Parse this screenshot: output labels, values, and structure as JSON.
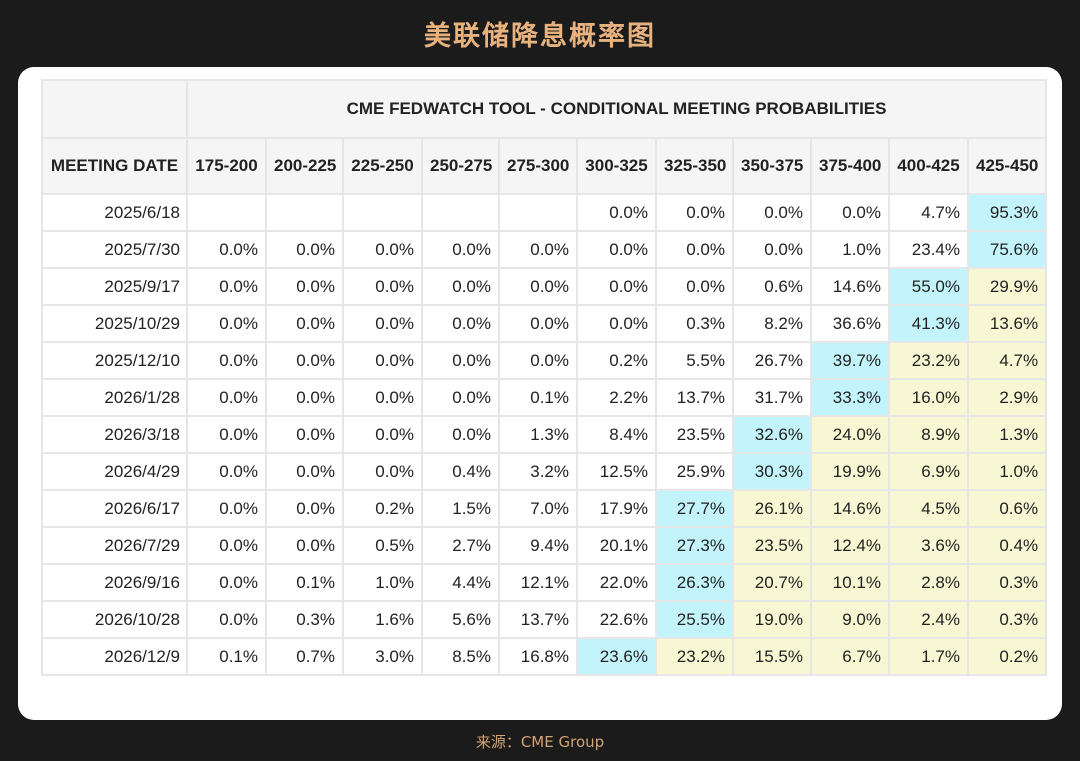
{
  "page": {
    "title": "美联储降息概率图",
    "source": "来源：CME Group"
  },
  "colors": {
    "background": "#1b1b1b",
    "title_text": "#e8b27e",
    "source_text": "#d2a374",
    "card": "#ffffff",
    "header_bg": "#f5f5f5",
    "highlight_max": "#c4f4fb",
    "highlight_below_max": "#f8f7d4",
    "grid": "#e6e6e6"
  },
  "table": {
    "title": "CME FEDWATCH TOOL - CONDITIONAL MEETING PROBABILITIES",
    "date_header": "MEETING DATE",
    "columns": [
      "175-200",
      "200-225",
      "225-250",
      "250-275",
      "275-300",
      "300-325",
      "325-350",
      "350-375",
      "375-400",
      "400-425",
      "425-450"
    ],
    "rows": [
      {
        "date": "2025/6/18",
        "values": [
          "",
          "",
          "",
          "",
          "",
          "0.0%",
          "0.0%",
          "0.0%",
          "0.0%",
          "4.7%",
          "95.3%"
        ],
        "hl": [
          "",
          "",
          "",
          "",
          "",
          "",
          "",
          "",
          "",
          "",
          "b"
        ]
      },
      {
        "date": "2025/7/30",
        "values": [
          "0.0%",
          "0.0%",
          "0.0%",
          "0.0%",
          "0.0%",
          "0.0%",
          "0.0%",
          "0.0%",
          "1.0%",
          "23.4%",
          "75.6%"
        ],
        "hl": [
          "",
          "",
          "",
          "",
          "",
          "",
          "",
          "",
          "",
          "",
          "b"
        ]
      },
      {
        "date": "2025/9/17",
        "values": [
          "0.0%",
          "0.0%",
          "0.0%",
          "0.0%",
          "0.0%",
          "0.0%",
          "0.0%",
          "0.6%",
          "14.6%",
          "55.0%",
          "29.9%"
        ],
        "hl": [
          "",
          "",
          "",
          "",
          "",
          "",
          "",
          "",
          "",
          "b",
          "y"
        ]
      },
      {
        "date": "2025/10/29",
        "values": [
          "0.0%",
          "0.0%",
          "0.0%",
          "0.0%",
          "0.0%",
          "0.0%",
          "0.3%",
          "8.2%",
          "36.6%",
          "41.3%",
          "13.6%"
        ],
        "hl": [
          "",
          "",
          "",
          "",
          "",
          "",
          "",
          "",
          "",
          "b",
          "y"
        ]
      },
      {
        "date": "2025/12/10",
        "values": [
          "0.0%",
          "0.0%",
          "0.0%",
          "0.0%",
          "0.0%",
          "0.2%",
          "5.5%",
          "26.7%",
          "39.7%",
          "23.2%",
          "4.7%"
        ],
        "hl": [
          "",
          "",
          "",
          "",
          "",
          "",
          "",
          "",
          "b",
          "y",
          "y"
        ]
      },
      {
        "date": "2026/1/28",
        "values": [
          "0.0%",
          "0.0%",
          "0.0%",
          "0.0%",
          "0.1%",
          "2.2%",
          "13.7%",
          "31.7%",
          "33.3%",
          "16.0%",
          "2.9%"
        ],
        "hl": [
          "",
          "",
          "",
          "",
          "",
          "",
          "",
          "",
          "b",
          "y",
          "y"
        ]
      },
      {
        "date": "2026/3/18",
        "values": [
          "0.0%",
          "0.0%",
          "0.0%",
          "0.0%",
          "1.3%",
          "8.4%",
          "23.5%",
          "32.6%",
          "24.0%",
          "8.9%",
          "1.3%"
        ],
        "hl": [
          "",
          "",
          "",
          "",
          "",
          "",
          "",
          "b",
          "y",
          "y",
          "y"
        ]
      },
      {
        "date": "2026/4/29",
        "values": [
          "0.0%",
          "0.0%",
          "0.0%",
          "0.4%",
          "3.2%",
          "12.5%",
          "25.9%",
          "30.3%",
          "19.9%",
          "6.9%",
          "1.0%"
        ],
        "hl": [
          "",
          "",
          "",
          "",
          "",
          "",
          "",
          "b",
          "y",
          "y",
          "y"
        ]
      },
      {
        "date": "2026/6/17",
        "values": [
          "0.0%",
          "0.0%",
          "0.2%",
          "1.5%",
          "7.0%",
          "17.9%",
          "27.7%",
          "26.1%",
          "14.6%",
          "4.5%",
          "0.6%"
        ],
        "hl": [
          "",
          "",
          "",
          "",
          "",
          "",
          "b",
          "y",
          "y",
          "y",
          "y"
        ]
      },
      {
        "date": "2026/7/29",
        "values": [
          "0.0%",
          "0.0%",
          "0.5%",
          "2.7%",
          "9.4%",
          "20.1%",
          "27.3%",
          "23.5%",
          "12.4%",
          "3.6%",
          "0.4%"
        ],
        "hl": [
          "",
          "",
          "",
          "",
          "",
          "",
          "b",
          "y",
          "y",
          "y",
          "y"
        ]
      },
      {
        "date": "2026/9/16",
        "values": [
          "0.0%",
          "0.1%",
          "1.0%",
          "4.4%",
          "12.1%",
          "22.0%",
          "26.3%",
          "20.7%",
          "10.1%",
          "2.8%",
          "0.3%"
        ],
        "hl": [
          "",
          "",
          "",
          "",
          "",
          "",
          "b",
          "y",
          "y",
          "y",
          "y"
        ]
      },
      {
        "date": "2026/10/28",
        "values": [
          "0.0%",
          "0.3%",
          "1.6%",
          "5.6%",
          "13.7%",
          "22.6%",
          "25.5%",
          "19.0%",
          "9.0%",
          "2.4%",
          "0.3%"
        ],
        "hl": [
          "",
          "",
          "",
          "",
          "",
          "",
          "b",
          "y",
          "y",
          "y",
          "y"
        ]
      },
      {
        "date": "2026/12/9",
        "values": [
          "0.1%",
          "0.7%",
          "3.0%",
          "8.5%",
          "16.8%",
          "23.6%",
          "23.2%",
          "15.5%",
          "6.7%",
          "1.7%",
          "0.2%"
        ],
        "hl": [
          "",
          "",
          "",
          "",
          "",
          "b",
          "y",
          "y",
          "y",
          "y",
          "y"
        ]
      }
    ]
  }
}
